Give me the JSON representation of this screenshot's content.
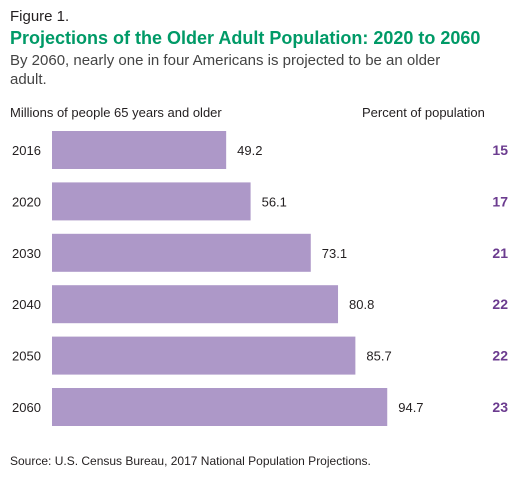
{
  "figure_label": "Figure 1.",
  "colors": {
    "title": "#009a67",
    "bar": "#ad98c8",
    "percent": "#6b3b8f"
  },
  "chart_data": {
    "type": "bar",
    "orientation": "horizontal",
    "title": "Projections of the Older Adult Population: 2020 to 2060",
    "subtitle": "By 2060, nearly one in four Americans is projected to be an older adult.",
    "ylabel": "Millions of people 65 years and older",
    "secondary_label": "Percent of population",
    "categories": [
      "2016",
      "2020",
      "2030",
      "2040",
      "2050",
      "2060"
    ],
    "values": [
      49.2,
      56.1,
      73.1,
      80.8,
      85.7,
      94.7
    ],
    "value_labels": [
      "49.2",
      "56.1",
      "73.1",
      "80.8",
      "85.7",
      "94.7"
    ],
    "percent": [
      "15",
      "17",
      "21",
      "22",
      "22",
      "23"
    ],
    "xlim": [
      0,
      125
    ],
    "grid": false,
    "legend": "none"
  },
  "source": "Source: U.S. Census Bureau, 2017 National Population Projections."
}
